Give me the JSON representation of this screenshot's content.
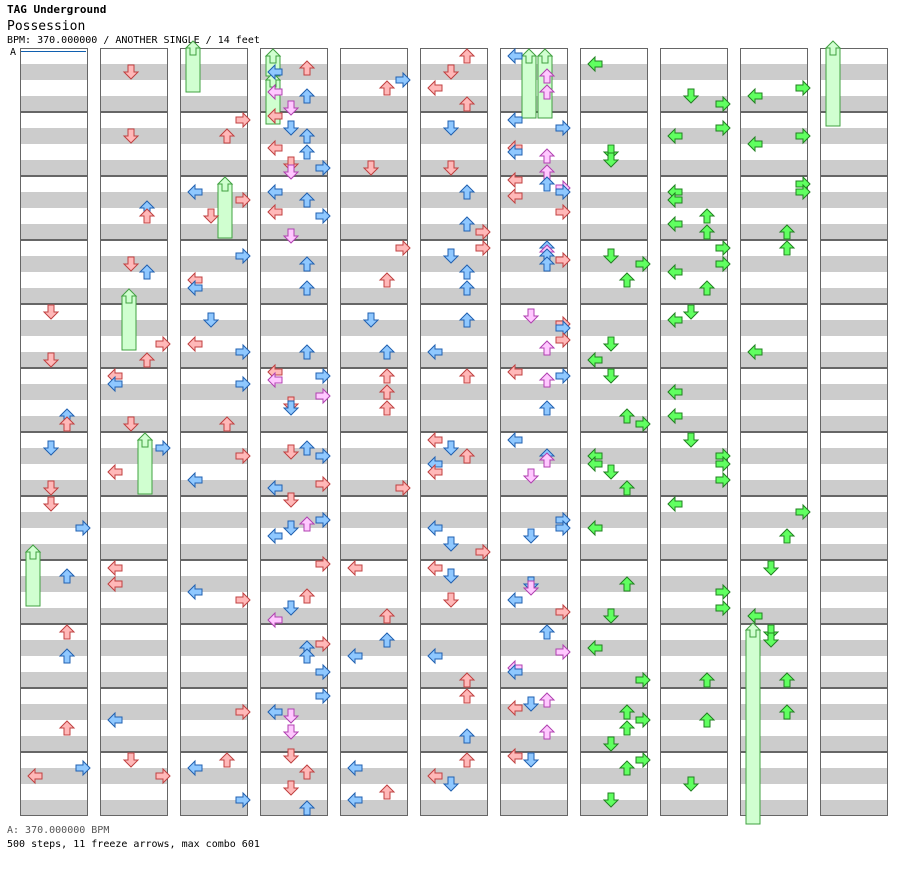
{
  "song": {
    "artist": "TAG Underground",
    "title": "Possession",
    "info": "BPM: 370.000000 / ANOTHER SINGLE / 14 feet"
  },
  "bpm_marker": {
    "label": "A"
  },
  "footer": {
    "bpm_line": "A: 370.000000 BPM",
    "stats_line": "500 steps, 11 freeze arrows, max combo 601"
  },
  "colors": {
    "quarter": "#ffb8b8",
    "quarter_stroke": "#c04040",
    "eighth": "#8fc8ff",
    "eighth_stroke": "#2060b0",
    "sixteenth": "#ffc8ff",
    "sixteenth_stroke": "#b040b0",
    "twelfth": "#60ff60",
    "twelfth_stroke": "#208020",
    "other": "#ffff60",
    "freeze": "#d0ffd0",
    "freeze_stroke": "#40a040",
    "stripe": "#cccccc",
    "frame": "#666666"
  },
  "icons": {
    "left": "left-arrow-icon",
    "down": "down-arrow-icon",
    "up": "up-arrow-icon",
    "right": "right-arrow-icon"
  },
  "stats": {
    "steps": 500,
    "freeze_arrows": 11,
    "max_combo": 601,
    "bpm": 370,
    "feet": 14
  }
}
